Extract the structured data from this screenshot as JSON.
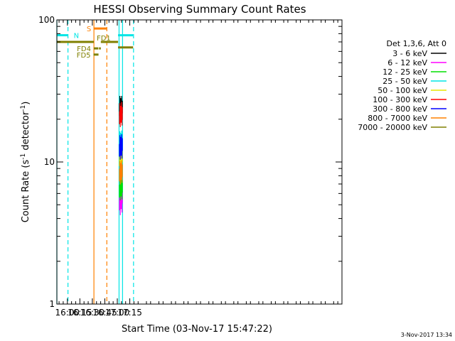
{
  "chart_data": {
    "type": "line",
    "title": "HESSI Observing Summary Count Rates",
    "xlabel": "Start Time (03-Nov-17 15:47:22)",
    "ylabel": "Count Rate (s",
    "ylabel_sup1": "-1",
    "ylabel_mid": " detector",
    "ylabel_sup2": "-1",
    "ylabel_end": ")",
    "x_unit": "minutes of day",
    "xlim": [
      947.37,
      1290.0
    ],
    "ylim": [
      1,
      100
    ],
    "yscale": "log",
    "grid": false,
    "legend_position": "right",
    "x_ticks": [
      {
        "value": 960,
        "label": "16:00"
      },
      {
        "value": 975,
        "label": "16:15"
      },
      {
        "value": 990,
        "label": "16:30"
      },
      {
        "value": 1005,
        "label": "16:45"
      },
      {
        "value": 1020,
        "label": "17:00"
      },
      {
        "value": 1035,
        "label": "17:15"
      }
    ],
    "y_ticks": [
      {
        "value": 1,
        "label": "1"
      },
      {
        "value": 10,
        "label": "10"
      },
      {
        "value": 100,
        "label": "100"
      }
    ],
    "legend_title": "Det 1,3,6, Att 0",
    "series": [
      {
        "name": "3 - 6 keV",
        "color": "#000000",
        "x": [
          1022.6,
          1023.1,
          1023.6,
          1024.1,
          1024.6,
          1025.1,
          1025.6,
          1026.1
        ],
        "values": [
          24,
          27,
          23,
          26,
          24,
          27,
          23,
          25
        ]
      },
      {
        "name": "6 - 12 keV",
        "color": "#ff00ff",
        "x": [
          1022.6,
          1023.1,
          1023.6,
          1024.1,
          1024.6,
          1025.1,
          1025.6,
          1026.1
        ],
        "values": [
          5.2,
          6.2,
          4.8,
          5.9,
          5.3,
          6.4,
          5.0,
          5.8
        ]
      },
      {
        "name": "12 - 25 keV",
        "color": "#00e000",
        "x": [
          1022.6,
          1023.1,
          1023.6,
          1024.1,
          1024.6,
          1025.1,
          1025.6,
          1026.1
        ],
        "values": [
          6.4,
          7.3,
          6.1,
          7.1,
          6.5,
          7.4,
          6.2,
          6.9
        ]
      },
      {
        "name": "25 - 50 keV",
        "color": "#00e5e5",
        "x": [
          1022.6,
          1023.1,
          1023.6,
          1024.1,
          1024.6,
          1025.1,
          1025.6,
          1026.1
        ],
        "values": [
          13.6,
          15.2,
          12.9,
          14.8,
          13.8,
          15.4,
          13.1,
          14.5
        ]
      },
      {
        "name": "50 - 100 keV",
        "color": "#e6e600",
        "x": [
          1022.6,
          1023.1,
          1023.6,
          1024.1,
          1024.6,
          1025.1,
          1025.6,
          1026.1
        ],
        "values": [
          10.6,
          11.9,
          10.1,
          11.6,
          10.8,
          12.0,
          10.3,
          11.3
        ]
      },
      {
        "name": "100 - 300 keV",
        "color": "#ff0000",
        "x": [
          1022.6,
          1023.1,
          1023.6,
          1024.1,
          1024.6,
          1025.1,
          1025.6,
          1026.1
        ],
        "values": [
          21,
          24,
          20,
          23,
          21.5,
          24.5,
          20.5,
          22.5
        ]
      },
      {
        "name": "300 - 800 keV",
        "color": "#0000ff",
        "x": [
          1022.6,
          1023.1,
          1023.6,
          1024.1,
          1024.6,
          1025.1,
          1025.6,
          1026.1
        ],
        "values": [
          12.4,
          14.3,
          11.8,
          13.9,
          12.6,
          14.5,
          12.0,
          13.6
        ]
      },
      {
        "name": "800 - 7000 keV",
        "color": "#ff8000",
        "x": [
          1022.6,
          1023.1,
          1023.6,
          1024.1,
          1024.6,
          1025.1,
          1025.6,
          1026.1
        ],
        "values": [
          8.3,
          9.4,
          7.9,
          9.1,
          8.5,
          9.5,
          8.1,
          8.9
        ]
      },
      {
        "name": "7000 - 20000 keV",
        "color": "#808000",
        "x": [],
        "values": []
      }
    ],
    "flag_bars": [
      {
        "label": "N",
        "color": "#00e5e5",
        "y": 78,
        "segments": [
          [
            947.37,
            960.7
          ],
          [
            1020.9,
            1039.0
          ]
        ]
      },
      {
        "label": "S",
        "color": "#ff8000",
        "y": 87,
        "segments": [
          [
            992.0,
            1007.4
          ]
        ]
      },
      {
        "label": "FD1",
        "color": "#808000",
        "y": 70,
        "segments": [
          [
            947.37,
            991.8
          ],
          [
            1000.2,
            1020.9
          ]
        ]
      },
      {
        "label": "",
        "color": "#808000",
        "y": 64,
        "segments": [
          [
            1020.9,
            1039.0
          ]
        ]
      },
      {
        "label": "FD4",
        "color": "#808000",
        "y": 63,
        "segments": [
          [
            991.8,
            997.2
          ],
          [
            998.0,
            1000.2
          ]
        ]
      },
      {
        "label": "FD5",
        "color": "#808000",
        "y": 57,
        "segments": [
          [
            991.4,
            997.4
          ]
        ]
      }
    ],
    "vertical_markers": [
      {
        "x": 947.37,
        "color": "#00e5e5",
        "style": "solid"
      },
      {
        "x": 960.7,
        "color": "#00e5e5",
        "style": "dashed"
      },
      {
        "x": 991.9,
        "color": "#ff8000",
        "style": "solid"
      },
      {
        "x": 1007.4,
        "color": "#ff8000",
        "style": "dashed"
      },
      {
        "x": 1022.1,
        "color": "#00e5e5",
        "style": "solid"
      },
      {
        "x": 1026.3,
        "color": "#00e5e5",
        "style": "solid"
      },
      {
        "x": 1039.5,
        "color": "#00e5e5",
        "style": "dashed"
      }
    ]
  },
  "footer": {
    "timestamp": "3-Nov-2017 13:34"
  }
}
